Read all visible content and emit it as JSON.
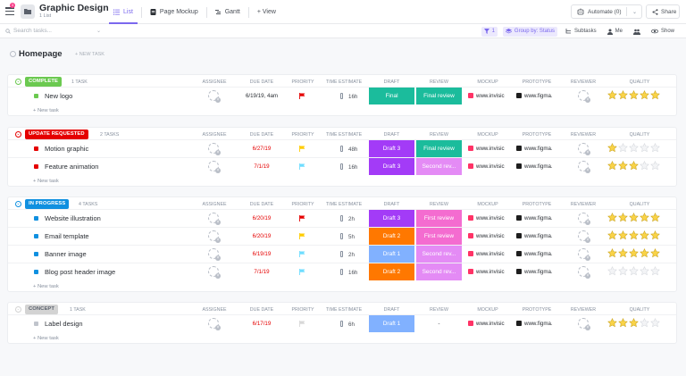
{
  "header": {
    "notif_count": "3",
    "title": "Graphic Design",
    "subtitle": "1 List",
    "views": [
      {
        "label": "List",
        "icon": "list-icon"
      },
      {
        "label": "Page Mockup",
        "icon": "doc-icon"
      },
      {
        "label": "Gantt",
        "icon": "gantt-icon"
      },
      {
        "label": "+ View",
        "icon": "plus-icon"
      }
    ],
    "automate_label": "Automate (0)",
    "share_label": "Share"
  },
  "toolbar": {
    "search_placeholder": "Search tasks...",
    "filter_count": "1",
    "group_by": "Group by: Status",
    "subtasks": "Subtasks",
    "me": "Me",
    "show": "Show"
  },
  "list": {
    "name": "Homepage",
    "new_task_top": "+ NEW TASK",
    "new_task": "+ New task"
  },
  "columns": {
    "assignee": "ASSIGNEE",
    "due": "DUE DATE",
    "priority": "PRIORITY",
    "estimate": "TIME ESTIMATE",
    "draft": "DRAFT",
    "review": "REVIEW",
    "mockup": "MOCKUP",
    "prototype": "PROTOTYPE",
    "reviewer": "REVIEWER",
    "quality": "QUALITY"
  },
  "colors": {
    "accent": "#7b68ee",
    "complete": "#6bc950",
    "update_requested": "#e50000",
    "in_progress": "#1090e0",
    "concept": "#d3d3d3",
    "final": "#1bbc9c",
    "draft3": "#a33bf7",
    "draft2": "#ff7800",
    "draft1": "#81b1ff",
    "review_pink": "#f46cd0",
    "second_review": "#e48bf5",
    "star": "#f9d348"
  },
  "groups": [
    {
      "status": "COMPLETE",
      "count": "1 TASK",
      "color": "#6bc950",
      "tasks": [
        {
          "name": "New logo",
          "due": "6/19/19, 4am",
          "overdue": false,
          "priority": "urgent",
          "estimate": "16h",
          "draft": "Final",
          "draft_color": "#1bbc9c",
          "review": "Final review",
          "review_color": "#1bbc9c",
          "mockup": "www.invisic",
          "prototype": "www.figma.",
          "quality": 5
        }
      ]
    },
    {
      "status": "UPDATE REQUESTED",
      "count": "2 TASKS",
      "color": "#e50000",
      "tasks": [
        {
          "name": "Motion graphic",
          "due": "6/27/19",
          "overdue": true,
          "priority": "high",
          "estimate": "48h",
          "draft": "Draft 3",
          "draft_color": "#a33bf7",
          "review": "Final review",
          "review_color": "#1bbc9c",
          "mockup": "www.invisic",
          "prototype": "www.figma.",
          "quality": 1
        },
        {
          "name": "Feature animation",
          "due": "7/1/19",
          "overdue": true,
          "priority": "normal",
          "estimate": "16h",
          "draft": "Draft 3",
          "draft_color": "#a33bf7",
          "review": "Second rev...",
          "review_color": "#e48bf5",
          "mockup": "www.invisic",
          "prototype": "www.figma.",
          "quality": 3
        }
      ]
    },
    {
      "status": "IN PROGRESS",
      "count": "4 TASKS",
      "color": "#1090e0",
      "tasks": [
        {
          "name": "Website illustration",
          "due": "6/20/19",
          "overdue": true,
          "priority": "urgent",
          "estimate": "2h",
          "draft": "Draft 3",
          "draft_color": "#a33bf7",
          "review": "First review",
          "review_color": "#f46cd0",
          "mockup": "www.invisic",
          "prototype": "www.figma.",
          "quality": 5
        },
        {
          "name": "Email template",
          "due": "6/20/19",
          "overdue": true,
          "priority": "high",
          "estimate": "5h",
          "draft": "Draft 2",
          "draft_color": "#ff7800",
          "review": "First review",
          "review_color": "#f46cd0",
          "mockup": "www.invisic",
          "prototype": "www.figma.",
          "quality": 5
        },
        {
          "name": "Banner image",
          "due": "6/19/19",
          "overdue": true,
          "priority": "normal",
          "estimate": "2h",
          "draft": "Draft 1",
          "draft_color": "#81b1ff",
          "review": "Second rev...",
          "review_color": "#e48bf5",
          "mockup": "www.invisic",
          "prototype": "www.figma.",
          "quality": 5
        },
        {
          "name": "Blog post header image",
          "due": "7/1/19",
          "overdue": true,
          "priority": "normal",
          "estimate": "16h",
          "draft": "Draft 2",
          "draft_color": "#ff7800",
          "review": "Second rev...",
          "review_color": "#e48bf5",
          "mockup": "www.invisic",
          "prototype": "www.figma.",
          "quality": 0
        }
      ]
    },
    {
      "status": "CONCEPT",
      "count": "1 TASK",
      "color": "#d3d3d3",
      "tasks": [
        {
          "name": "Label design",
          "due": "6/17/19",
          "overdue": true,
          "priority": "low",
          "estimate": "6h",
          "draft": "Draft 1",
          "draft_color": "#81b1ff",
          "review": "-",
          "review_color": "",
          "mockup": "www.invisic",
          "prototype": "www.figma.",
          "quality": 3
        }
      ]
    }
  ]
}
